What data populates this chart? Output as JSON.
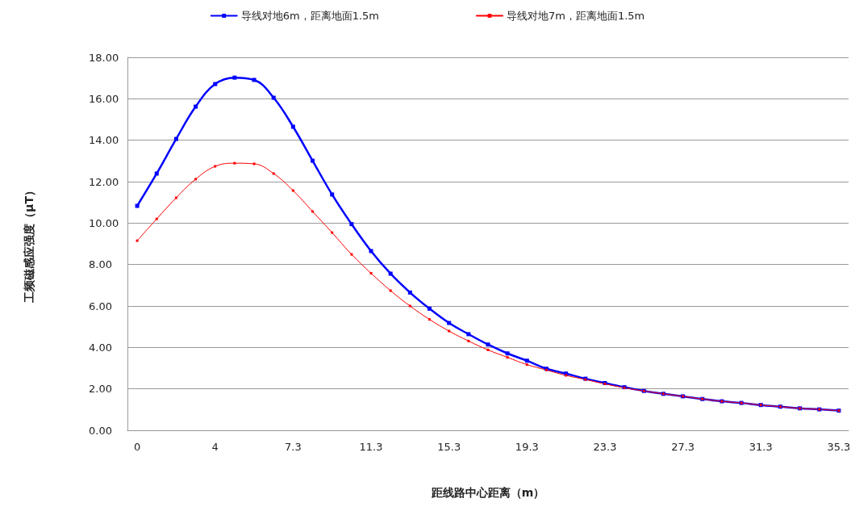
{
  "chart_data": {
    "type": "line",
    "xlabel": "距线路中心距离（m）",
    "ylabel": "工频磁感应强度（μT）",
    "categories": [
      "0",
      null,
      null,
      null,
      "4",
      null,
      null,
      null,
      "7.3",
      null,
      null,
      null,
      "11.3",
      null,
      null,
      null,
      "15.3",
      null,
      null,
      null,
      "19.3",
      null,
      null,
      null,
      "23.3",
      null,
      null,
      null,
      "27.3",
      null,
      null,
      null,
      "31.3",
      null,
      null,
      null,
      "35.3"
    ],
    "series": [
      {
        "name": "导线对地6m，距离地面1.5m",
        "color": "#0000ff",
        "values": [
          10.83,
          12.39,
          14.06,
          15.62,
          16.71,
          17.02,
          16.91,
          16.05,
          14.65,
          13.01,
          11.38,
          9.95,
          8.65,
          7.56,
          6.65,
          5.87,
          5.18,
          4.64,
          4.14,
          3.71,
          3.36,
          2.97,
          2.74,
          2.49,
          2.28,
          2.08,
          1.9,
          1.76,
          1.64,
          1.51,
          1.4,
          1.32,
          1.22,
          1.14,
          1.06,
          1.01,
          0.95
        ]
      },
      {
        "name": "导线对地7m，距离地面1.5m",
        "color": "#ff0000",
        "values": [
          9.15,
          10.2,
          11.22,
          12.12,
          12.74,
          12.89,
          12.86,
          12.39,
          11.57,
          10.56,
          9.54,
          8.49,
          7.58,
          6.74,
          6.0,
          5.35,
          4.79,
          4.31,
          3.88,
          3.52,
          3.17,
          2.91,
          2.65,
          2.45,
          2.24,
          2.05,
          1.9,
          1.76,
          1.64,
          1.51,
          1.4,
          1.32,
          1.22,
          1.14,
          1.06,
          1.01,
          0.95
        ]
      }
    ],
    "ylim": [
      0,
      18
    ],
    "yticks": [
      {
        "value": 0,
        "label": "0.00"
      },
      {
        "value": 2,
        "label": "2.00"
      },
      {
        "value": 4,
        "label": "4.00"
      },
      {
        "value": 6,
        "label": "6.00"
      },
      {
        "value": 8,
        "label": "8.00"
      },
      {
        "value": 10,
        "label": "10.00"
      },
      {
        "value": 12,
        "label": "12.00"
      },
      {
        "value": 14,
        "label": "14.00"
      },
      {
        "value": 16,
        "label": "16.00"
      },
      {
        "value": 18,
        "label": "18.00"
      }
    ],
    "grid": "y",
    "legend": "top",
    "marker": "square",
    "line_style": "solid"
  }
}
